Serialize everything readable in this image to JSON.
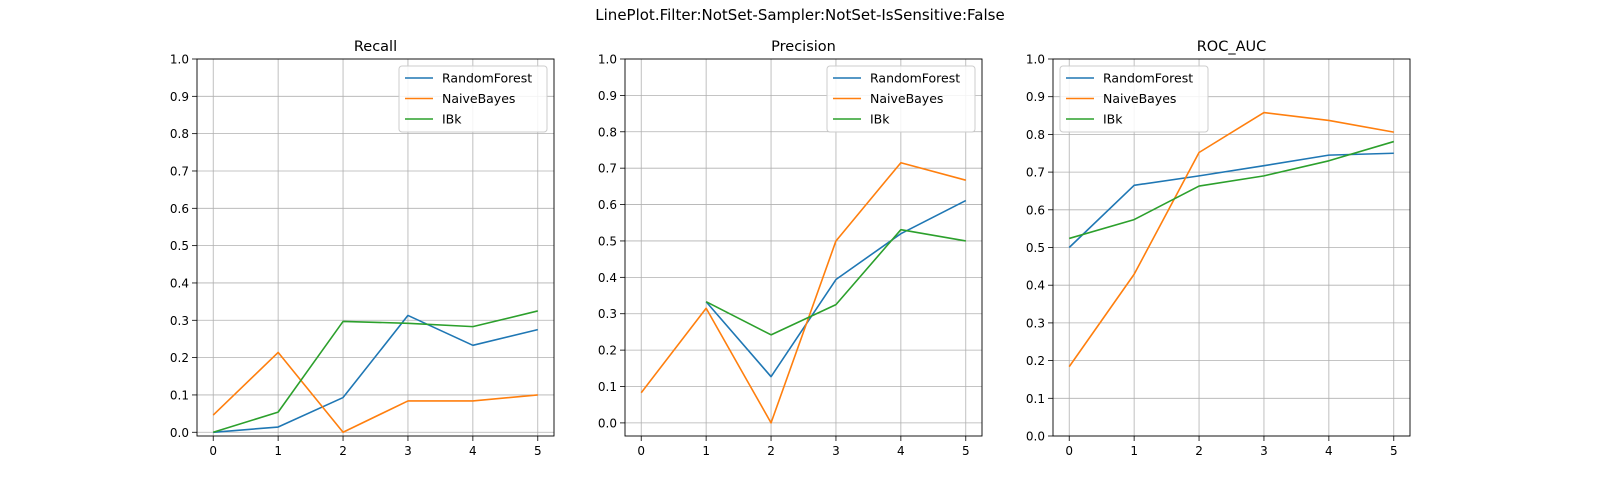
{
  "suptitle": "LinePlot.Filter:NotSet-Sampler:NotSet-IsSensitive:False",
  "colors": {
    "RandomForest": "#1f77b4",
    "NaiveBayes": "#ff7f0e",
    "IBk": "#2ca02c",
    "grid": "#b0b0b0"
  },
  "chart_data": [
    {
      "type": "line",
      "title": "Recall",
      "x": [
        0,
        1,
        2,
        3,
        4,
        5
      ],
      "xlim": [
        -0.25,
        5.25
      ],
      "ylim": [
        -0.01,
        1.0
      ],
      "yticks": [
        0.0,
        0.1,
        0.2,
        0.3,
        0.4,
        0.5,
        0.6,
        0.7,
        0.8,
        0.9,
        1.0
      ],
      "grid": true,
      "legend": "upper right",
      "series": [
        {
          "name": "RandomForest",
          "values": [
            0.0,
            0.014,
            0.093,
            0.313,
            0.233,
            0.275
          ]
        },
        {
          "name": "NaiveBayes",
          "values": [
            0.046,
            0.214,
            0.0,
            0.084,
            0.084,
            0.1
          ]
        },
        {
          "name": "IBk",
          "values": [
            0.0,
            0.054,
            0.297,
            0.292,
            0.283,
            0.325
          ]
        }
      ]
    },
    {
      "type": "line",
      "title": "Precision",
      "x": [
        0,
        1,
        2,
        3,
        4,
        5
      ],
      "xlim": [
        -0.25,
        5.25
      ],
      "ylim": [
        -0.036,
        1.0
      ],
      "yticks": [
        0.0,
        0.1,
        0.2,
        0.3,
        0.4,
        0.5,
        0.6,
        0.7,
        0.8,
        0.9,
        1.0
      ],
      "grid": true,
      "legend": "upper right",
      "series": [
        {
          "name": "RandomForest",
          "values": [
            null,
            0.333,
            0.127,
            0.394,
            0.52,
            0.611
          ]
        },
        {
          "name": "NaiveBayes",
          "values": [
            0.083,
            0.315,
            0.0,
            0.5,
            0.715,
            0.667
          ]
        },
        {
          "name": "IBk",
          "values": [
            null,
            0.333,
            0.242,
            0.325,
            0.531,
            0.5
          ]
        }
      ]
    },
    {
      "type": "line",
      "title": "ROC_AUC",
      "x": [
        0,
        1,
        2,
        3,
        4,
        5
      ],
      "xlim": [
        -0.25,
        5.25
      ],
      "ylim": [
        0.0,
        1.0
      ],
      "yticks": [
        0.0,
        0.1,
        0.2,
        0.3,
        0.4,
        0.5,
        0.6,
        0.7,
        0.8,
        0.9,
        1.0
      ],
      "grid": true,
      "legend": "upper left",
      "series": [
        {
          "name": "RandomForest",
          "values": [
            0.5,
            0.665,
            0.69,
            0.717,
            0.745,
            0.75
          ]
        },
        {
          "name": "NaiveBayes",
          "values": [
            0.184,
            0.429,
            0.752,
            0.858,
            0.837,
            0.806
          ]
        },
        {
          "name": "IBk",
          "values": [
            0.524,
            0.574,
            0.663,
            0.69,
            0.73,
            0.781
          ]
        }
      ]
    }
  ]
}
